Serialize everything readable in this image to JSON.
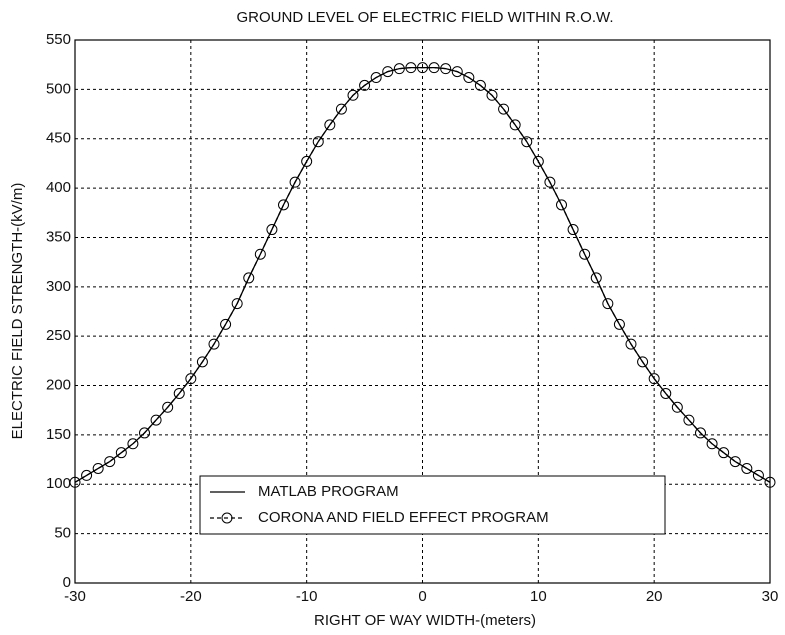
{
  "chart_data": {
    "type": "line",
    "title": "GROUND LEVEL OF ELECTRIC FIELD WITHIN R.O.W.",
    "xlabel": "RIGHT OF WAY WIDTH-(meters)",
    "ylabel": "ELECTRIC FIELD STRENGTH-(kV/m)",
    "x": [
      -30,
      -29,
      -28,
      -27,
      -26,
      -25,
      -24,
      -23,
      -22,
      -21,
      -20,
      -19,
      -18,
      -17,
      -16,
      -15,
      -14,
      -13,
      -12,
      -11,
      -10,
      -9,
      -8,
      -7,
      -6,
      -5,
      -4,
      -3,
      -2,
      -1,
      0,
      1,
      2,
      3,
      4,
      5,
      6,
      7,
      8,
      9,
      10,
      11,
      12,
      13,
      14,
      15,
      16,
      17,
      18,
      19,
      20,
      21,
      22,
      23,
      24,
      25,
      26,
      27,
      28,
      29,
      30
    ],
    "series": [
      {
        "name": "MATLAB PROGRAM",
        "color": "#000000",
        "marker": false,
        "dashed": false,
        "values": [
          102,
          109,
          116,
          123,
          132,
          141,
          152,
          165,
          178,
          192,
          207,
          224,
          242,
          262,
          283,
          309,
          333,
          358,
          383,
          406,
          427,
          447,
          464,
          480,
          494,
          504,
          512,
          518,
          521,
          522,
          522,
          522,
          521,
          518,
          512,
          504,
          494,
          480,
          464,
          447,
          427,
          406,
          383,
          358,
          333,
          309,
          283,
          262,
          242,
          224,
          207,
          192,
          178,
          165,
          152,
          141,
          132,
          123,
          116,
          109,
          102
        ]
      },
      {
        "name": "CORONA AND FIELD EFFECT PROGRAM",
        "color": "#000000",
        "marker": true,
        "dashed": true,
        "values": [
          102,
          109,
          116,
          123,
          132,
          141,
          152,
          165,
          178,
          192,
          207,
          224,
          242,
          262,
          283,
          309,
          333,
          358,
          383,
          406,
          427,
          447,
          464,
          480,
          494,
          504,
          512,
          518,
          521,
          522,
          522,
          522,
          521,
          518,
          512,
          504,
          494,
          480,
          464,
          447,
          427,
          406,
          383,
          358,
          333,
          309,
          283,
          262,
          242,
          224,
          207,
          192,
          178,
          165,
          152,
          141,
          132,
          123,
          116,
          109,
          102
        ]
      }
    ],
    "xlim": [
      -30,
      30
    ],
    "xticks": [
      -30,
      -20,
      -10,
      0,
      10,
      20,
      30
    ],
    "ylim": [
      0,
      550
    ],
    "yticks": [
      0,
      50,
      100,
      150,
      200,
      250,
      300,
      350,
      400,
      450,
      500,
      550
    ],
    "grid": true,
    "legend": "lower center"
  }
}
